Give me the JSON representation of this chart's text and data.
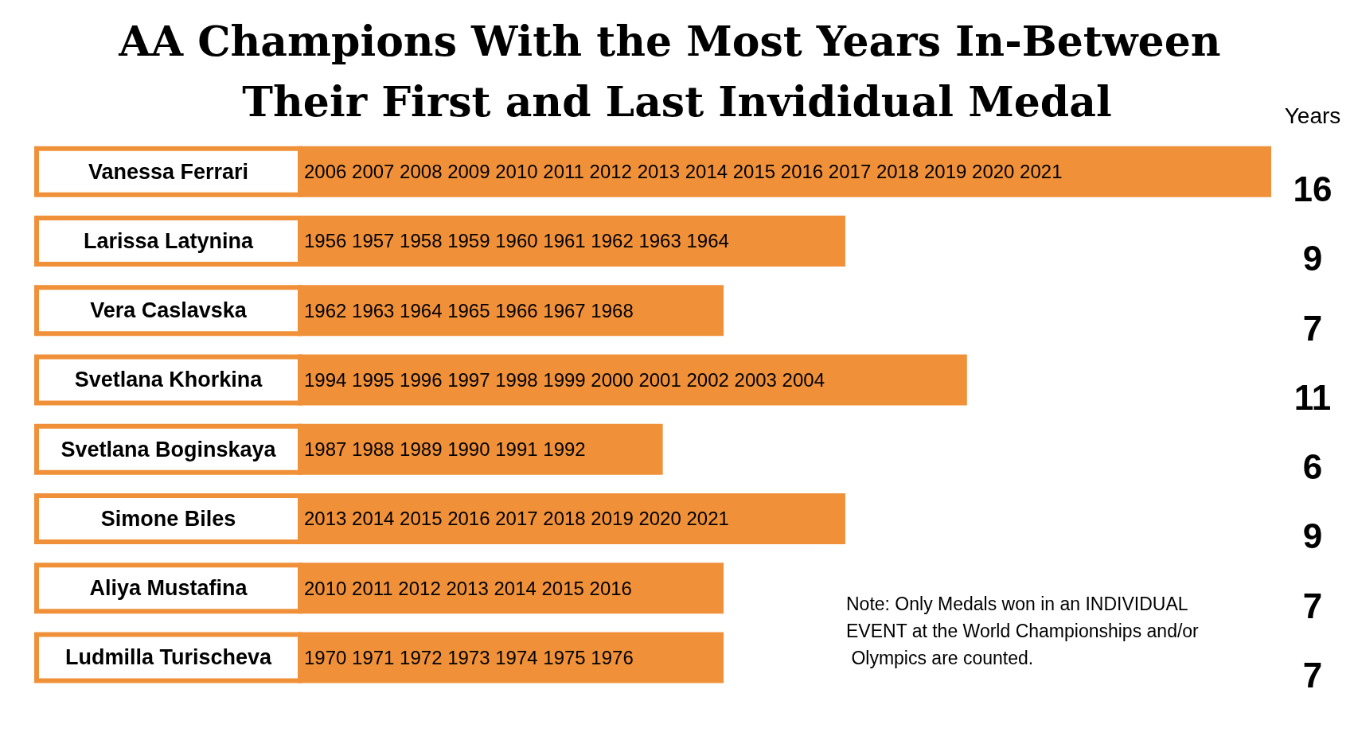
{
  "chart_data": {
    "type": "bar",
    "orientation": "horizontal",
    "title": "AA Champions With the Most Years In-Between Their First and Last Invididual Medal",
    "y2label": "Years",
    "categories": [
      "Vanessa Ferrari",
      "Larissa Latynina",
      "Vera Caslavska",
      "Svetlana Khorkina",
      "Svetlana Boginskaya",
      "Simone Biles",
      "Aliya Mustafina",
      "Ludmilla Turischeva"
    ],
    "values": [
      16,
      9,
      7,
      11,
      6,
      9,
      7,
      7
    ],
    "color": "#f0913a",
    "data_labels": true,
    "annotations": [
      {
        "text": "2006 2007 2008 2009 2010 2011 2012 2013 2014 2015 2016 2017 2018 2019 2020 2021",
        "y": "Vanessa Ferrari"
      },
      {
        "text": "1956 1957 1958 1959 1960 1961 1962 1963 1964",
        "y": "Larissa Latynina"
      },
      {
        "text": "1962 1963 1964 1965 1966 1967 1968",
        "y": "Vera Caslavska"
      },
      {
        "text": "1994 1995 1996 1997 1998 1999 2000 2001 2002 2003 2004",
        "y": "Svetlana Khorkina"
      },
      {
        "text": "1987 1988 1989 1990 1991 1992",
        "y": "Svetlana Boginskaya"
      },
      {
        "text": "2013 2014 2015 2016 2017 2018 2019 2020 2021",
        "y": "Simone Biles"
      },
      {
        "text": "2010 2011 2012 2013 2014 2015 2016",
        "y": "Aliya Mustafina"
      },
      {
        "text": "1970 1971 1972 1973 1974 1975 1976",
        "y": "Ludmilla Turischeva"
      },
      "Note: Only Medals won in an INDIVIDUAL EVENT at the World Championships and/or Olympics are counted."
    ]
  }
}
